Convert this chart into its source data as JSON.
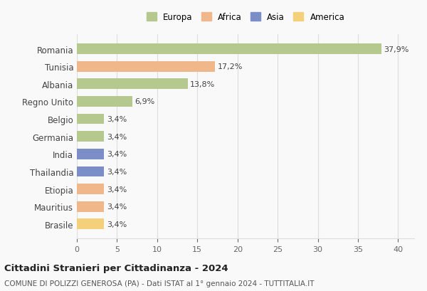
{
  "countries": [
    "Romania",
    "Tunisia",
    "Albania",
    "Regno Unito",
    "Belgio",
    "Germania",
    "India",
    "Thailandia",
    "Etiopia",
    "Mauritius",
    "Brasile"
  ],
  "values": [
    37.9,
    17.2,
    13.8,
    6.9,
    3.4,
    3.4,
    3.4,
    3.4,
    3.4,
    3.4,
    3.4
  ],
  "labels": [
    "37,9%",
    "17,2%",
    "13,8%",
    "6,9%",
    "3,4%",
    "3,4%",
    "3,4%",
    "3,4%",
    "3,4%",
    "3,4%",
    "3,4%"
  ],
  "colors": [
    "#b5c98e",
    "#f0b88a",
    "#b5c98e",
    "#b5c98e",
    "#b5c98e",
    "#b5c98e",
    "#7b8ec8",
    "#7b8ec8",
    "#f0b88a",
    "#f0b88a",
    "#f5d07a"
  ],
  "continent_colors": {
    "Europa": "#b5c98e",
    "Africa": "#f0b88a",
    "Asia": "#7b8ec8",
    "America": "#f5d07a"
  },
  "xlim": [
    0,
    42
  ],
  "xticks": [
    0,
    5,
    10,
    15,
    20,
    25,
    30,
    35,
    40
  ],
  "title": "Cittadini Stranieri per Cittadinanza - 2024",
  "subtitle": "COMUNE DI POLIZZI GENEROSA (PA) - Dati ISTAT al 1° gennaio 2024 - TUTTITALIA.IT",
  "bg_color": "#f9f9f9",
  "grid_color": "#dddddd",
  "bar_height": 0.6
}
